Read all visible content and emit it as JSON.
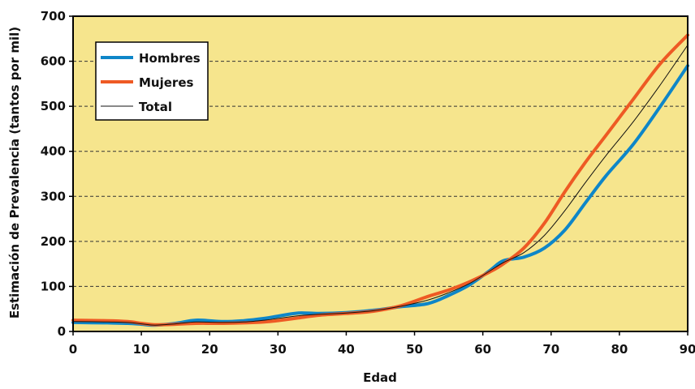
{
  "chart_data": {
    "type": "line",
    "title": "",
    "xlabel": "Edad",
    "ylabel": "Estimación de Prevalencia (tantos por mil)",
    "xlim": [
      0,
      90
    ],
    "ylim": [
      0,
      700
    ],
    "xticks": [
      "0",
      "10",
      "20",
      "30",
      "40",
      "50",
      "60",
      "70",
      "80",
      "90"
    ],
    "yticks": [
      "0",
      "100",
      "200",
      "300",
      "400",
      "500",
      "600",
      "700"
    ],
    "grid": "horizontal dashed",
    "background": "#f6e58d",
    "legend_position": "top-left",
    "series": [
      {
        "name": "Hombres",
        "color": "#0e86c8",
        "x": [
          0,
          5,
          8,
          10,
          12,
          15,
          18,
          22,
          25,
          28,
          30,
          33,
          36,
          40,
          44,
          48,
          52,
          55,
          58,
          61,
          63,
          66,
          69,
          72,
          75,
          78,
          82,
          86,
          90
        ],
        "y": [
          20,
          19,
          18,
          16,
          14,
          18,
          25,
          22,
          24,
          29,
          34,
          41,
          40,
          42,
          47,
          55,
          62,
          80,
          103,
          135,
          157,
          165,
          185,
          225,
          285,
          345,
          415,
          500,
          590
        ]
      },
      {
        "name": "Mujeres",
        "color": "#ee5a24",
        "x": [
          0,
          5,
          8,
          10,
          12,
          15,
          18,
          22,
          25,
          28,
          30,
          33,
          36,
          40,
          44,
          48,
          52,
          55,
          58,
          61,
          63,
          66,
          69,
          72,
          75,
          78,
          82,
          86,
          90
        ],
        "y": [
          25,
          24,
          22,
          18,
          15,
          16,
          18,
          18,
          19,
          21,
          24,
          30,
          36,
          40,
          45,
          57,
          78,
          92,
          110,
          132,
          150,
          185,
          240,
          310,
          375,
          435,
          515,
          595,
          658
        ]
      },
      {
        "name": "Total",
        "color": "#111111",
        "x": [
          0,
          5,
          8,
          10,
          12,
          15,
          18,
          22,
          25,
          28,
          30,
          33,
          36,
          40,
          44,
          48,
          52,
          55,
          58,
          61,
          63,
          66,
          69,
          72,
          75,
          78,
          82,
          86,
          90
        ],
        "y": [
          22,
          21,
          20,
          17,
          14,
          17,
          21,
          20,
          21,
          25,
          29,
          35,
          38,
          41,
          46,
          56,
          70,
          86,
          106,
          134,
          153,
          175,
          213,
          268,
          330,
          390,
          465,
          548,
          636
        ]
      }
    ]
  }
}
